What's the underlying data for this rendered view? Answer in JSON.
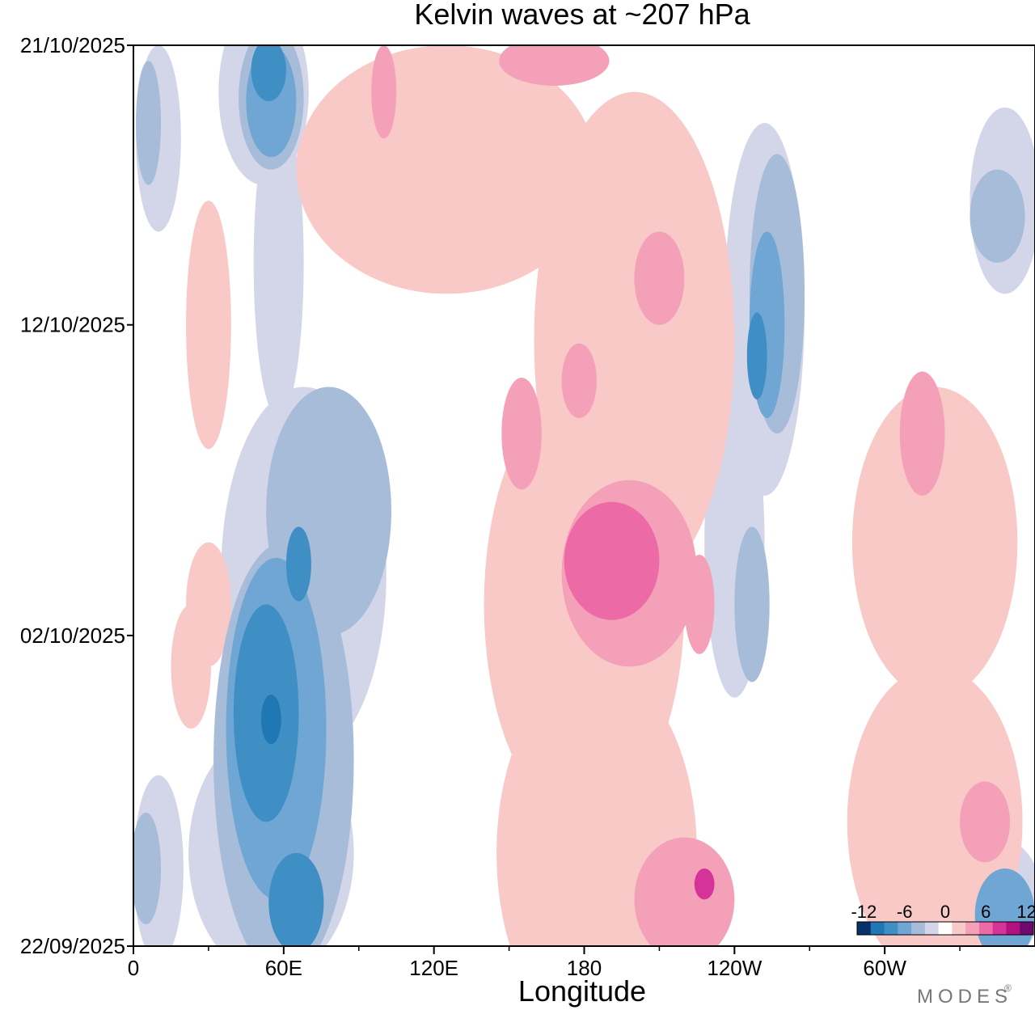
{
  "chart_data": {
    "type": "heatmap",
    "title": "Kelvin waves at ~207 hPa",
    "xlabel": "Longitude",
    "ylabel": "",
    "x_ticks": [
      {
        "lon": 0,
        "label": "0"
      },
      {
        "lon": 60,
        "label": "60E"
      },
      {
        "lon": 120,
        "label": "120E"
      },
      {
        "lon": 180,
        "label": "180"
      },
      {
        "lon": 240,
        "label": "120W"
      },
      {
        "lon": 300,
        "label": "60W"
      }
    ],
    "x_minor_ticks": [
      30,
      90,
      150,
      210,
      270,
      330
    ],
    "xlim": [
      0,
      360
    ],
    "y_ticks": [
      {
        "day": 0,
        "label": "22/09/2025"
      },
      {
        "day": 10,
        "label": "02/10/2025"
      },
      {
        "day": 20,
        "label": "12/10/2025"
      },
      {
        "day": 29,
        "label": "21/10/2025"
      }
    ],
    "ylim_days": [
      0,
      29
    ],
    "colorbar": {
      "labels": [
        "-12",
        "-6",
        "0",
        "6",
        "12"
      ],
      "levels": [
        -12,
        -10,
        -8,
        -6,
        -4,
        -2,
        0,
        2,
        4,
        6,
        8,
        10,
        12
      ],
      "colors": [
        "#08306b",
        "#1f78b4",
        "#3f8fc5",
        "#6fa6d3",
        "#a6bcd9",
        "#d3d6e8",
        "#ffffff",
        "#f8c9c7",
        "#f4a0b8",
        "#ec6aa6",
        "#d6339a",
        "#b0127f",
        "#6e0a6e"
      ]
    },
    "contour_blobs": [
      {
        "level": -2,
        "lon": 52,
        "day": 27.5,
        "rlon": 18,
        "rday": 3.0
      },
      {
        "level": -4,
        "lon": 55,
        "day": 27.3,
        "rlon": 13,
        "rday": 2.3
      },
      {
        "level": -6,
        "lon": 55,
        "day": 27.2,
        "rlon": 10,
        "rday": 1.8
      },
      {
        "level": -8,
        "lon": 54,
        "day": 28.2,
        "rlon": 7,
        "rday": 1.0
      },
      {
        "level": -2,
        "lon": 58,
        "day": 22,
        "rlon": 10,
        "rday": 5
      },
      {
        "level": -2,
        "lon": 68,
        "day": 12,
        "rlon": 33,
        "rday": 6
      },
      {
        "level": -4,
        "lon": 78,
        "day": 14,
        "rlon": 25,
        "rday": 4
      },
      {
        "level": -4,
        "lon": 60,
        "day": 6,
        "rlon": 28,
        "rday": 7
      },
      {
        "level": -6,
        "lon": 57,
        "day": 7,
        "rlon": 20,
        "rday": 5.5
      },
      {
        "level": -8,
        "lon": 53,
        "day": 7.5,
        "rlon": 13,
        "rday": 3.5
      },
      {
        "level": -8,
        "lon": 65,
        "day": 1.4,
        "rlon": 11,
        "rday": 1.6
      },
      {
        "level": -8,
        "lon": 66,
        "day": 12.3,
        "rlon": 5,
        "rday": 1.2
      },
      {
        "level": -10,
        "lon": 55,
        "day": 7.3,
        "rlon": 4,
        "rday": 0.8
      },
      {
        "level": -2,
        "lon": 55,
        "day": 3,
        "rlon": 33,
        "rday": 4
      },
      {
        "level": -2,
        "lon": 10,
        "day": 26,
        "rlon": 9,
        "rday": 3
      },
      {
        "level": -4,
        "lon": 6,
        "day": 26.5,
        "rlon": 5,
        "rday": 2
      },
      {
        "level": -2,
        "lon": 10,
        "day": 2.5,
        "rlon": 10,
        "rday": 3
      },
      {
        "level": -4,
        "lon": 5,
        "day": 2.5,
        "rlon": 6,
        "rday": 1.8
      },
      {
        "level": -2,
        "lon": 252,
        "day": 20.5,
        "rlon": 16,
        "rday": 6
      },
      {
        "level": -4,
        "lon": 257,
        "day": 21,
        "rlon": 11,
        "rday": 4.5
      },
      {
        "level": -6,
        "lon": 253,
        "day": 20,
        "rlon": 7,
        "rday": 3
      },
      {
        "level": -8,
        "lon": 249,
        "day": 19,
        "rlon": 4,
        "rday": 1.4
      },
      {
        "level": -2,
        "lon": 240,
        "day": 13,
        "rlon": 12,
        "rday": 5
      },
      {
        "level": -4,
        "lon": 247,
        "day": 11,
        "rlon": 7,
        "rday": 2.5
      },
      {
        "level": -2,
        "lon": 348,
        "day": 24,
        "rlon": 14,
        "rday": 3
      },
      {
        "level": -4,
        "lon": 345,
        "day": 23.5,
        "rlon": 11,
        "rday": 1.5
      },
      {
        "level": -2,
        "lon": 345,
        "day": 1.5,
        "rlon": 18,
        "rday": 2
      },
      {
        "level": -6,
        "lon": 348,
        "day": 1,
        "rlon": 12,
        "rday": 1.5
      },
      {
        "level": 2,
        "lon": 125,
        "day": 25,
        "rlon": 60,
        "rday": 4
      },
      {
        "level": 4,
        "lon": 100,
        "day": 27.5,
        "rlon": 5,
        "rday": 1.5
      },
      {
        "level": 4,
        "lon": 168,
        "day": 28.5,
        "rlon": 22,
        "rday": 0.8
      },
      {
        "level": 2,
        "lon": 200,
        "day": 19.5,
        "rlon": 40,
        "rday": 8
      },
      {
        "level": 4,
        "lon": 210,
        "day": 21.5,
        "rlon": 10,
        "rday": 1.5
      },
      {
        "level": 4,
        "lon": 178,
        "day": 18.2,
        "rlon": 7,
        "rday": 1.2
      },
      {
        "level": 2,
        "lon": 180,
        "day": 11,
        "rlon": 40,
        "rday": 7
      },
      {
        "level": 4,
        "lon": 198,
        "day": 12,
        "rlon": 27,
        "rday": 3
      },
      {
        "level": 6,
        "lon": 191,
        "day": 12.4,
        "rlon": 19,
        "rday": 1.9
      },
      {
        "level": 4,
        "lon": 155,
        "day": 16.5,
        "rlon": 8,
        "rday": 1.8
      },
      {
        "level": 4,
        "lon": 226,
        "day": 11,
        "rlon": 6,
        "rday": 1.6
      },
      {
        "level": 2,
        "lon": 185,
        "day": 3,
        "rlon": 40,
        "rday": 6
      },
      {
        "level": 4,
        "lon": 220,
        "day": 1.5,
        "rlon": 20,
        "rday": 2
      },
      {
        "level": 8,
        "lon": 228,
        "day": 2,
        "rlon": 4,
        "rday": 0.5
      },
      {
        "level": 2,
        "lon": 30,
        "day": 20,
        "rlon": 9,
        "rday": 4
      },
      {
        "level": 2,
        "lon": 30,
        "day": 11,
        "rlon": 9,
        "rday": 2
      },
      {
        "level": 2,
        "lon": 23,
        "day": 9,
        "rlon": 8,
        "rday": 2
      },
      {
        "level": 2,
        "lon": 320,
        "day": 13,
        "rlon": 33,
        "rday": 5
      },
      {
        "level": 4,
        "lon": 315,
        "day": 16.5,
        "rlon": 9,
        "rday": 2
      },
      {
        "level": 2,
        "lon": 320,
        "day": 4,
        "rlon": 35,
        "rday": 5
      },
      {
        "level": 4,
        "lon": 340,
        "day": 4,
        "rlon": 10,
        "rday": 1.3
      }
    ]
  },
  "logo": {
    "text": "MODES"
  }
}
